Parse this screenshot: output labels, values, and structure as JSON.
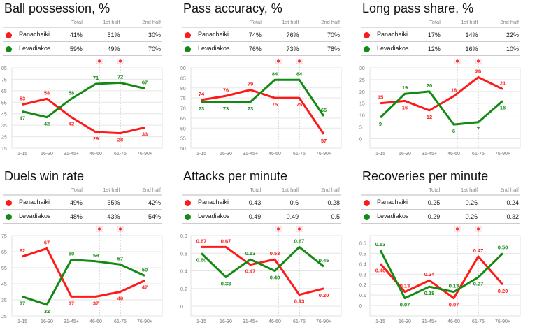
{
  "colors": {
    "Panachaiki": "#ff1a1a",
    "Levadiakos": "#138a13"
  },
  "table_headers": [
    "Total",
    "1st half",
    "2nd half"
  ],
  "categories": [
    "1-15",
    "16-30",
    "31-45+",
    "46-60",
    "61-75",
    "76-90+"
  ],
  "goal_markers": {
    "icon": "soccer-ball-icon",
    "positions": [
      "46-60",
      "61-75"
    ]
  },
  "chart_data": [
    {
      "type": "line",
      "title": "Ball possession, %",
      "ticks": [
        "85",
        "75",
        "65",
        "55",
        "45",
        "35",
        "25",
        "15"
      ],
      "ylim": [
        15,
        85
      ],
      "table": [
        {
          "team": "Panachaiki",
          "values": [
            "41%",
            "51%",
            "30%"
          ]
        },
        {
          "team": "Levadiakos",
          "values": [
            "59%",
            "49%",
            "70%"
          ]
        }
      ],
      "series": [
        {
          "name": "Panachaiki",
          "values": [
            53,
            58,
            42,
            29,
            28,
            33
          ],
          "labels": [
            "53",
            "58",
            "42",
            "29",
            "28",
            "33"
          ]
        },
        {
          "name": "Levadiakos",
          "values": [
            47,
            42,
            58,
            71,
            72,
            67
          ],
          "labels": [
            "47",
            "42",
            "58",
            "71",
            "72",
            "67"
          ]
        }
      ]
    },
    {
      "type": "line",
      "title": "Pass accuracy, %",
      "ticks": [
        "90",
        "85",
        "80",
        "75",
        "70",
        "65",
        "60",
        "55",
        "50"
      ],
      "ylim": [
        50,
        90
      ],
      "table": [
        {
          "team": "Panachaiki",
          "values": [
            "74%",
            "76%",
            "70%"
          ]
        },
        {
          "team": "Levadiakos",
          "values": [
            "76%",
            "73%",
            "78%"
          ]
        }
      ],
      "series": [
        {
          "name": "Panachaiki",
          "values": [
            74,
            76,
            79,
            75,
            75,
            57
          ],
          "labels": [
            "74",
            "76",
            "79",
            "75",
            "75",
            "57"
          ]
        },
        {
          "name": "Levadiakos",
          "values": [
            73,
            73,
            73,
            84,
            84,
            66
          ],
          "labels": [
            "73",
            "73",
            "73",
            "84",
            "84",
            "66"
          ]
        }
      ]
    },
    {
      "type": "line",
      "title": "Long pass share, %",
      "ticks": [
        "30",
        "25",
        "20",
        "15",
        "10",
        "5",
        "0"
      ],
      "ylim": [
        -4,
        30
      ],
      "table": [
        {
          "team": "Panachaiki",
          "values": [
            "17%",
            "14%",
            "22%"
          ]
        },
        {
          "team": "Levadiakos",
          "values": [
            "12%",
            "16%",
            "10%"
          ]
        }
      ],
      "series": [
        {
          "name": "Panachaiki",
          "values": [
            15,
            16,
            12,
            18,
            26,
            21
          ],
          "labels": [
            "15",
            "16",
            "12",
            "18",
            "26",
            "21"
          ]
        },
        {
          "name": "Levadiakos",
          "values": [
            9,
            19,
            20,
            6,
            7,
            16
          ],
          "labels": [
            "9",
            "19",
            "20",
            "6",
            "7",
            "16"
          ]
        }
      ]
    },
    {
      "type": "line",
      "title": "Duels win rate",
      "ticks": [
        "75",
        "65",
        "55",
        "45",
        "35",
        "25"
      ],
      "ylim": [
        25,
        75
      ],
      "table": [
        {
          "team": "Panachaiki",
          "values": [
            "49%",
            "55%",
            "42%"
          ]
        },
        {
          "team": "Levadiakos",
          "values": [
            "48%",
            "43%",
            "54%"
          ]
        }
      ],
      "series": [
        {
          "name": "Panachaiki",
          "values": [
            62,
            67,
            37,
            37,
            40,
            47
          ],
          "labels": [
            "62",
            "67",
            "37",
            "37",
            "40",
            "47"
          ]
        },
        {
          "name": "Levadiakos",
          "values": [
            37,
            32,
            60,
            59,
            57,
            50
          ],
          "labels": [
            "37",
            "32",
            "60",
            "59",
            "57",
            "50"
          ]
        }
      ]
    },
    {
      "type": "line",
      "title": "Attacks per minute",
      "ticks": [
        "0.8",
        "0.6",
        "0.4",
        "0.2",
        "0"
      ],
      "ylim": [
        -0.11,
        0.8
      ],
      "table": [
        {
          "team": "Panachaiki",
          "values": [
            "0.43",
            "0.6",
            "0.28"
          ]
        },
        {
          "team": "Levadiakos",
          "values": [
            "0.49",
            "0.49",
            "0.5"
          ]
        }
      ],
      "series": [
        {
          "name": "Panachaiki",
          "values": [
            0.67,
            0.67,
            0.47,
            0.53,
            0.13,
            0.2
          ],
          "labels": [
            "0.67",
            "0.67",
            "0.47",
            "0.53",
            "0.13",
            "0.20"
          ]
        },
        {
          "name": "Levadiakos",
          "values": [
            0.6,
            0.33,
            0.53,
            0.4,
            0.67,
            0.45
          ],
          "labels": [
            "0.60",
            "0.33",
            "0.53",
            "0.40",
            "0.67",
            "0.45"
          ]
        }
      ]
    },
    {
      "type": "line",
      "title": "Recoveries per minute",
      "ticks": [
        "0.6",
        "0.5",
        "0.4",
        "0.3",
        "0.2",
        "0.1",
        "0"
      ],
      "ylim": [
        -0.1,
        0.67
      ],
      "table": [
        {
          "team": "Panachaiki",
          "values": [
            "0.25",
            "0.26",
            "0.24"
          ]
        },
        {
          "team": "Levadiakos",
          "values": [
            "0.29",
            "0.26",
            "0.32"
          ]
        }
      ],
      "series": [
        {
          "name": "Panachaiki",
          "values": [
            0.4,
            0.13,
            0.24,
            0.07,
            0.47,
            0.2
          ],
          "labels": [
            "0.40",
            "0.13",
            "0.24",
            "0.07",
            "0.47",
            "0.20"
          ]
        },
        {
          "name": "Levadiakos",
          "values": [
            0.53,
            0.07,
            0.18,
            0.13,
            0.27,
            0.5
          ],
          "labels": [
            "0.53",
            "0.07",
            "0.18",
            "0.13",
            "0.27",
            "0.50"
          ]
        }
      ]
    }
  ]
}
